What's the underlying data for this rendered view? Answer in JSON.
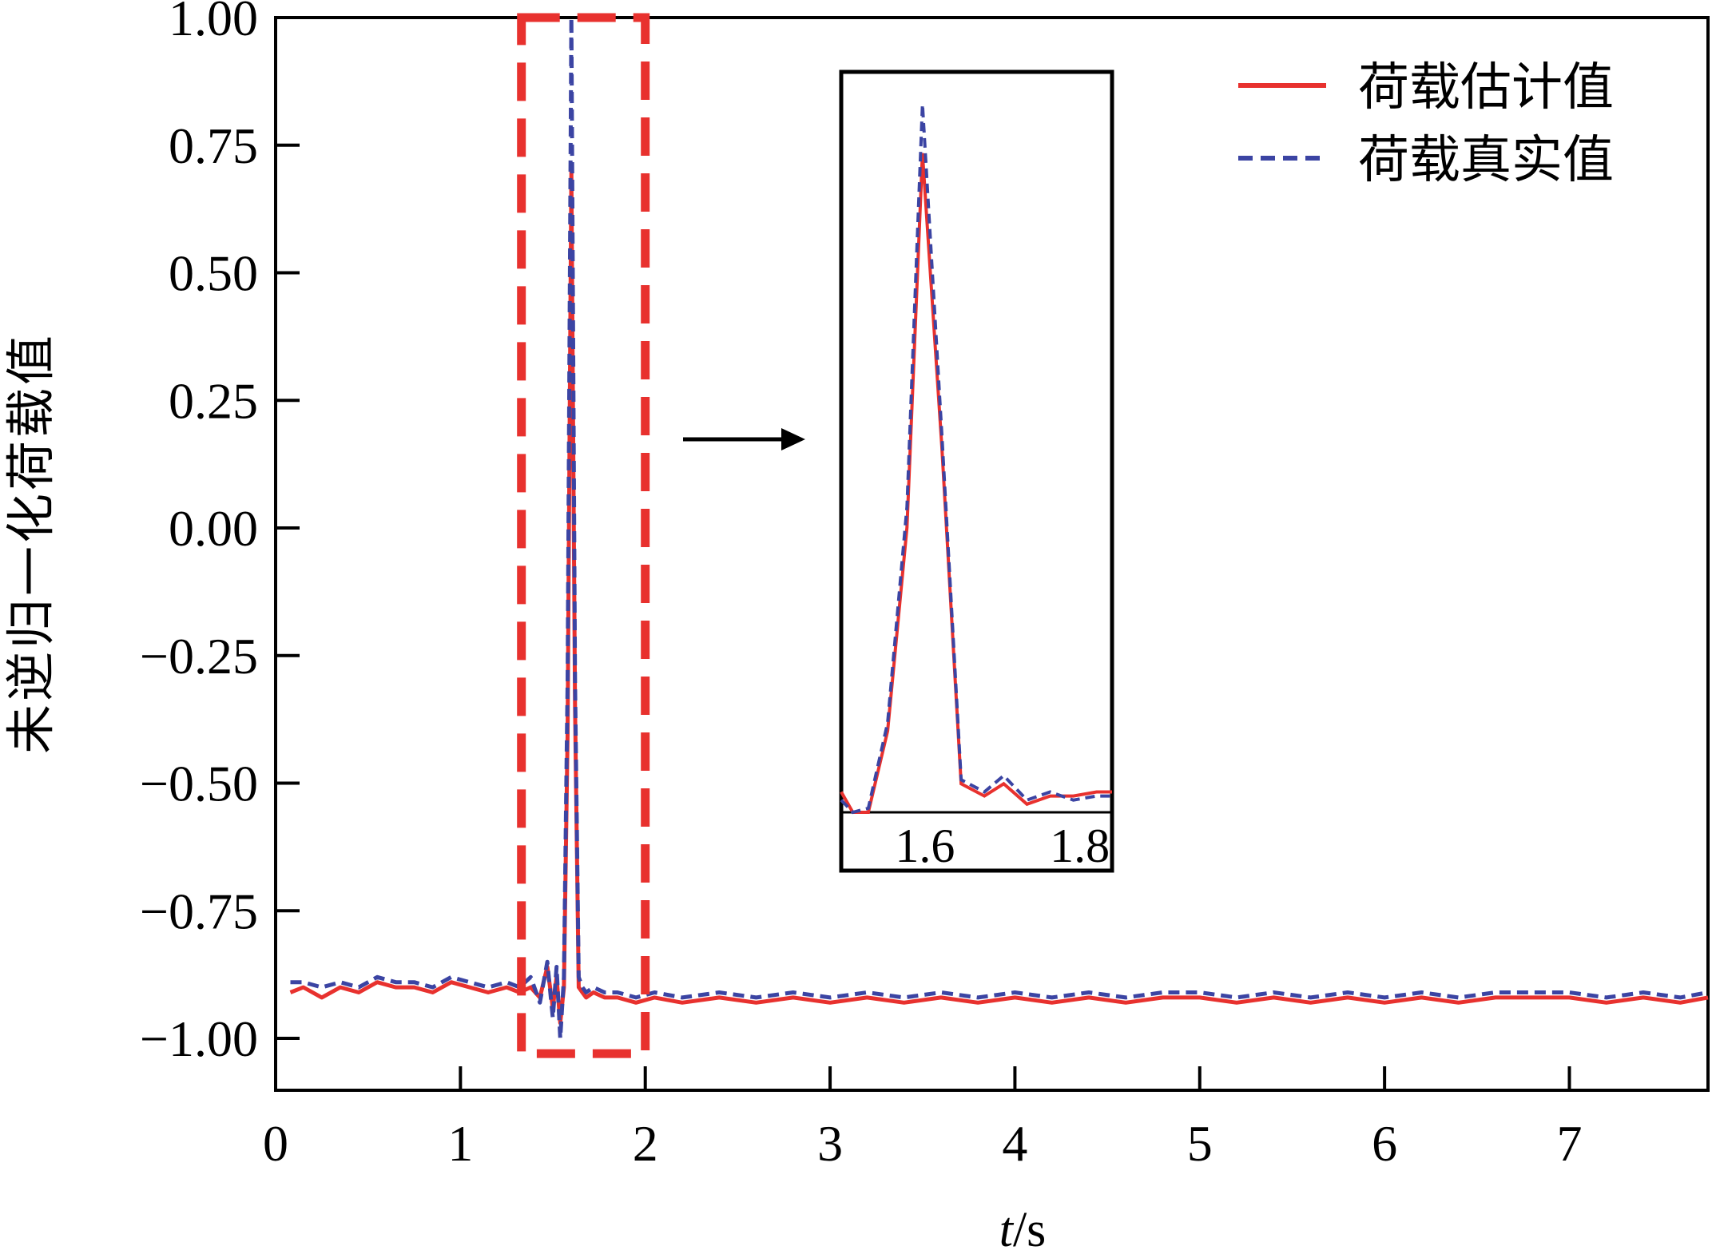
{
  "colors": {
    "estimate": "#e8312e",
    "actual": "#3b44a3",
    "highlight_box": "#e8312e",
    "axis": "#000000"
  },
  "chart_data": {
    "type": "line",
    "title": "",
    "xlabel_italic": "t",
    "xlabel_unit": "/s",
    "ylabel": "未逆归一化荷载值",
    "xlim": [
      0,
      7.75
    ],
    "ylim": [
      -1.1,
      1.0
    ],
    "x_ticks": [
      0,
      1,
      2,
      3,
      4,
      5,
      6,
      7
    ],
    "x_tick_labels": [
      "0",
      "1",
      "2",
      "3",
      "4",
      "5",
      "6",
      "7"
    ],
    "y_ticks": [
      1.0,
      0.75,
      0.5,
      0.25,
      0.0,
      -0.25,
      -0.5,
      -0.75,
      -1.0
    ],
    "y_tick_labels": [
      "1.00",
      "0.75",
      "0.50",
      "0.25",
      "0.00",
      "−0.25",
      "−0.50",
      "−0.75",
      "−1.00"
    ],
    "grid": false,
    "legend_position": "top-right",
    "series": [
      {
        "name": "荷载估计值",
        "style": "solid",
        "color": "#e8312e",
        "x": [
          0.08,
          0.15,
          0.25,
          0.35,
          0.45,
          0.55,
          0.65,
          0.75,
          0.85,
          0.95,
          1.05,
          1.15,
          1.25,
          1.32,
          1.38,
          1.43,
          1.47,
          1.5,
          1.52,
          1.54,
          1.56,
          1.58,
          1.6,
          1.62,
          1.64,
          1.66,
          1.68,
          1.72,
          1.78,
          1.85,
          1.95,
          2.05,
          2.2,
          2.4,
          2.6,
          2.8,
          3.0,
          3.2,
          3.4,
          3.6,
          3.8,
          4.0,
          4.2,
          4.4,
          4.6,
          4.8,
          5.0,
          5.2,
          5.4,
          5.6,
          5.8,
          6.0,
          6.2,
          6.4,
          6.6,
          6.8,
          7.0,
          7.2,
          7.4,
          7.6,
          7.75
        ],
        "y": [
          -0.91,
          -0.9,
          -0.92,
          -0.9,
          -0.91,
          -0.89,
          -0.9,
          -0.9,
          -0.91,
          -0.89,
          -0.9,
          -0.91,
          -0.9,
          -0.91,
          -0.9,
          -0.92,
          -0.86,
          -0.94,
          -0.88,
          -0.97,
          -0.9,
          -0.4,
          0.7,
          -0.35,
          -0.9,
          -0.91,
          -0.92,
          -0.91,
          -0.92,
          -0.92,
          -0.93,
          -0.92,
          -0.93,
          -0.92,
          -0.93,
          -0.92,
          -0.93,
          -0.92,
          -0.93,
          -0.92,
          -0.93,
          -0.92,
          -0.93,
          -0.92,
          -0.93,
          -0.92,
          -0.92,
          -0.93,
          -0.92,
          -0.93,
          -0.92,
          -0.93,
          -0.92,
          -0.93,
          -0.92,
          -0.92,
          -0.92,
          -0.93,
          -0.92,
          -0.93,
          -0.92
        ]
      },
      {
        "name": "荷载真实值",
        "style": "dashed",
        "color": "#3b44a3",
        "x": [
          0.08,
          0.15,
          0.25,
          0.35,
          0.45,
          0.55,
          0.65,
          0.75,
          0.85,
          0.95,
          1.05,
          1.15,
          1.25,
          1.32,
          1.38,
          1.43,
          1.47,
          1.5,
          1.52,
          1.54,
          1.56,
          1.58,
          1.6,
          1.62,
          1.64,
          1.66,
          1.68,
          1.72,
          1.78,
          1.85,
          1.95,
          2.05,
          2.2,
          2.4,
          2.6,
          2.8,
          3.0,
          3.2,
          3.4,
          3.6,
          3.8,
          4.0,
          4.2,
          4.4,
          4.6,
          4.8,
          5.0,
          5.2,
          5.4,
          5.6,
          5.8,
          6.0,
          6.2,
          6.4,
          6.6,
          6.8,
          7.0,
          7.2,
          7.4,
          7.6,
          7.75
        ],
        "y": [
          -0.89,
          -0.89,
          -0.9,
          -0.89,
          -0.9,
          -0.88,
          -0.89,
          -0.89,
          -0.9,
          -0.88,
          -0.89,
          -0.9,
          -0.89,
          -0.9,
          -0.88,
          -0.93,
          -0.85,
          -0.96,
          -0.86,
          -1.0,
          -0.88,
          -0.3,
          1.0,
          -0.3,
          -0.88,
          -0.9,
          -0.91,
          -0.9,
          -0.91,
          -0.91,
          -0.92,
          -0.91,
          -0.92,
          -0.91,
          -0.92,
          -0.91,
          -0.92,
          -0.91,
          -0.92,
          -0.91,
          -0.92,
          -0.91,
          -0.92,
          -0.91,
          -0.92,
          -0.91,
          -0.91,
          -0.92,
          -0.91,
          -0.92,
          -0.91,
          -0.92,
          -0.91,
          -0.92,
          -0.91,
          -0.91,
          -0.91,
          -0.92,
          -0.91,
          -0.92,
          -0.91
        ]
      }
    ],
    "highlight_region": {
      "x": [
        1.33,
        2.0
      ],
      "y": [
        -1.03,
        1.0
      ]
    },
    "inset": {
      "xlim": [
        1.5,
        1.85
      ],
      "x_tick_labels": [
        "1.6",
        "1.8"
      ],
      "x_ticks": [
        1.6,
        1.8
      ],
      "estimate": {
        "x": [
          1.5,
          1.515,
          1.535,
          1.56,
          1.585,
          1.605,
          1.63,
          1.655,
          1.685,
          1.71,
          1.74,
          1.77,
          1.8,
          1.83,
          1.85
        ],
        "y": [
          -0.85,
          -0.9,
          -0.9,
          -0.7,
          -0.2,
          0.72,
          0.0,
          -0.83,
          -0.86,
          -0.83,
          -0.88,
          -0.86,
          -0.86,
          -0.85,
          -0.85
        ]
      },
      "actual": {
        "x": [
          1.5,
          1.515,
          1.535,
          1.56,
          1.585,
          1.605,
          1.63,
          1.655,
          1.685,
          1.71,
          1.74,
          1.77,
          1.8,
          1.83,
          1.85
        ],
        "y": [
          -0.87,
          -0.9,
          -0.89,
          -0.68,
          -0.15,
          0.84,
          0.03,
          -0.82,
          -0.85,
          -0.81,
          -0.87,
          -0.85,
          -0.87,
          -0.86,
          -0.86
        ]
      }
    }
  }
}
